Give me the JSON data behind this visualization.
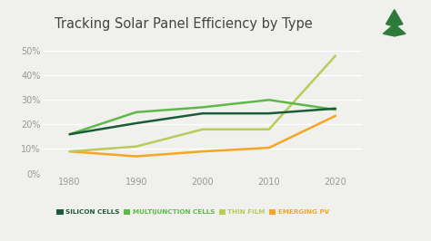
{
  "title": "Tracking Solar Panel Efficiency by Type",
  "years": [
    1980,
    1990,
    2000,
    2010,
    2020
  ],
  "silicon_cells": [
    16,
    20.5,
    24.5,
    24.5,
    26.5
  ],
  "multijunction_cells": [
    16,
    25,
    27,
    30,
    26
  ],
  "thin_film": [
    9,
    11,
    18,
    18,
    48
  ],
  "emerging_pv": [
    9,
    7,
    9,
    10.5,
    23.5
  ],
  "colors": {
    "silicon_cells": "#1a5c38",
    "multijunction_cells": "#5dba4a",
    "thin_film": "#b8cc5a",
    "emerging_pv": "#f5a623"
  },
  "background_color": "#f0f0ec",
  "plot_bg": "#f0f0ec",
  "ylim": [
    0,
    55
  ],
  "yticks": [
    0,
    10,
    20,
    30,
    40,
    50
  ],
  "xlim": [
    1976,
    2024
  ],
  "xticks": [
    1980,
    1990,
    2000,
    2010,
    2020
  ],
  "grid_color": "#ffffff",
  "tick_color": "#999999",
  "title_color": "#444444",
  "legend_labels": [
    "SILICON CELLS",
    "MULTIJUNCTION CELLS",
    "THIN FILM",
    "EMERGING PV"
  ],
  "legend_text_colors": [
    "#1a5c38",
    "#5dba4a",
    "#b8cc5a",
    "#f5a623"
  ]
}
